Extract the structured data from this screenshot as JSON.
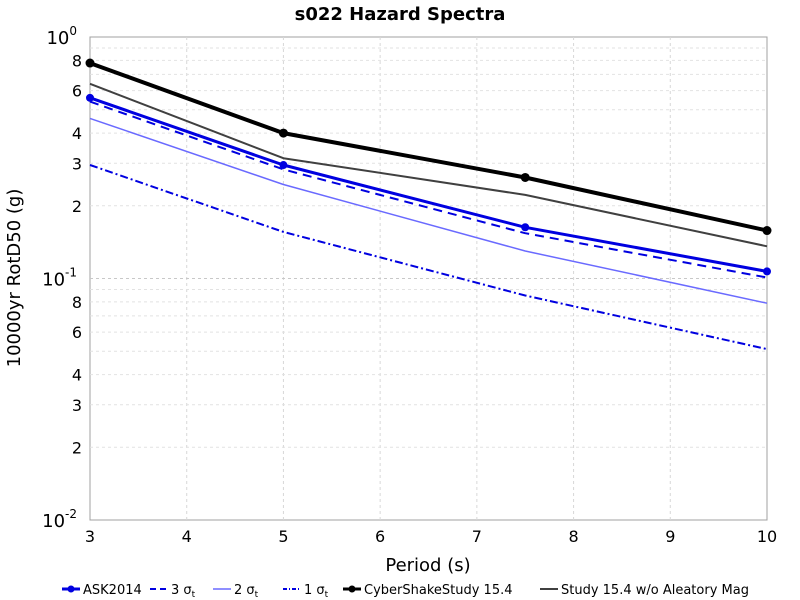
{
  "chart_data": {
    "type": "line",
    "title": "s022 Hazard Spectra",
    "xlabel": "Period (s)",
    "ylabel": "10000yr RotD50 (g)",
    "xlim": [
      3,
      10
    ],
    "ylim": [
      0.01,
      1.0
    ],
    "yscale": "log",
    "grid": true,
    "legend_position": "bottom",
    "x_ticks": [
      "3",
      "4",
      "5",
      "6",
      "7",
      "8",
      "9",
      "10"
    ],
    "y_major_ticks": [
      {
        "value": 1.0,
        "base": "10",
        "exp": "0"
      },
      {
        "value": 0.1,
        "base": "10",
        "exp": "-1"
      },
      {
        "value": 0.01,
        "base": "10",
        "exp": "-2"
      }
    ],
    "y_minor_ticks": [
      {
        "value": 0.8,
        "label": "8"
      },
      {
        "value": 0.6,
        "label": "6"
      },
      {
        "value": 0.4,
        "label": "4"
      },
      {
        "value": 0.3,
        "label": "3"
      },
      {
        "value": 0.2,
        "label": "2"
      },
      {
        "value": 0.08,
        "label": "8"
      },
      {
        "value": 0.06,
        "label": "6"
      },
      {
        "value": 0.04,
        "label": "4"
      },
      {
        "value": 0.03,
        "label": "3"
      },
      {
        "value": 0.02,
        "label": "2"
      }
    ],
    "series": [
      {
        "name": "ASK2014",
        "color": "#0000e0",
        "width": 3,
        "dash": "",
        "markers": true,
        "x": [
          3,
          5,
          7.5,
          10
        ],
        "y": [
          0.56,
          0.295,
          0.163,
          0.107
        ]
      },
      {
        "name": "3 σt",
        "color": "#0000e0",
        "width": 2,
        "dash": "9,6",
        "markers": false,
        "x": [
          3,
          5,
          7.5,
          10
        ],
        "y": [
          0.54,
          0.283,
          0.154,
          0.101
        ]
      },
      {
        "name": "2 σt",
        "color": "#6a6aff",
        "width": 1.5,
        "dash": "",
        "markers": false,
        "x": [
          3,
          5,
          7.5,
          10
        ],
        "y": [
          0.46,
          0.245,
          0.13,
          0.079
        ]
      },
      {
        "name": "1 σt",
        "color": "#0000e0",
        "width": 2,
        "dash": "8,3,2,3",
        "markers": false,
        "x": [
          3,
          5,
          7.5,
          10
        ],
        "y": [
          0.295,
          0.156,
          0.085,
          0.051
        ]
      },
      {
        "name": "CyberShakeStudy 15.4",
        "color": "#000000",
        "width": 4,
        "dash": "",
        "markers": true,
        "x": [
          3,
          5,
          7.5,
          10
        ],
        "y": [
          0.78,
          0.4,
          0.262,
          0.158
        ]
      },
      {
        "name": "Study 15.4 w/o Aleatory Mag",
        "color": "#404040",
        "width": 2,
        "dash": "",
        "markers": false,
        "x": [
          3,
          5,
          7.5,
          10
        ],
        "y": [
          0.64,
          0.315,
          0.222,
          0.136
        ]
      }
    ],
    "legend": [
      {
        "label": "ASK2014",
        "series": 0
      },
      {
        "label": "3 σ",
        "sub": "t",
        "series": 1
      },
      {
        "label": "2 σ",
        "sub": "t",
        "series": 2
      },
      {
        "label": "1 σ",
        "sub": "t",
        "series": 3
      },
      {
        "label": "CyberShakeStudy 15.4",
        "series": 4
      },
      {
        "label": "Study 15.4 w/o Aleatory Mag",
        "series": 5
      }
    ]
  }
}
